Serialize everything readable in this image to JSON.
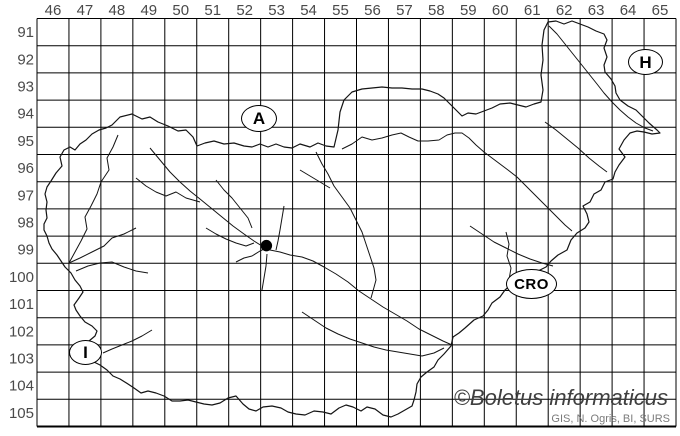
{
  "grid": {
    "column_labels": [
      "46",
      "47",
      "48",
      "49",
      "50",
      "51",
      "52",
      "53",
      "54",
      "55",
      "56",
      "57",
      "58",
      "59",
      "60",
      "61",
      "62",
      "63",
      "64",
      "65"
    ],
    "row_labels": [
      "91",
      "92",
      "93",
      "94",
      "95",
      "96",
      "97",
      "98",
      "99",
      "100",
      "101",
      "102",
      "103",
      "104",
      "105"
    ]
  },
  "countries": {
    "austria": "A",
    "hungary": "H",
    "croatia": "CRO",
    "italy": "I"
  },
  "record": {
    "grid_column": "53",
    "grid_row": "99"
  },
  "credits": {
    "watermark": "©Boletus informaticus",
    "sources": "GIS, N. Ogris, BI, SURS"
  },
  "colors": {
    "grid_line": "#000000",
    "map_line": "#141414",
    "label_text": "#4a4a4a",
    "sources_text": "#7b7b7b",
    "point_fill": "#000000"
  }
}
